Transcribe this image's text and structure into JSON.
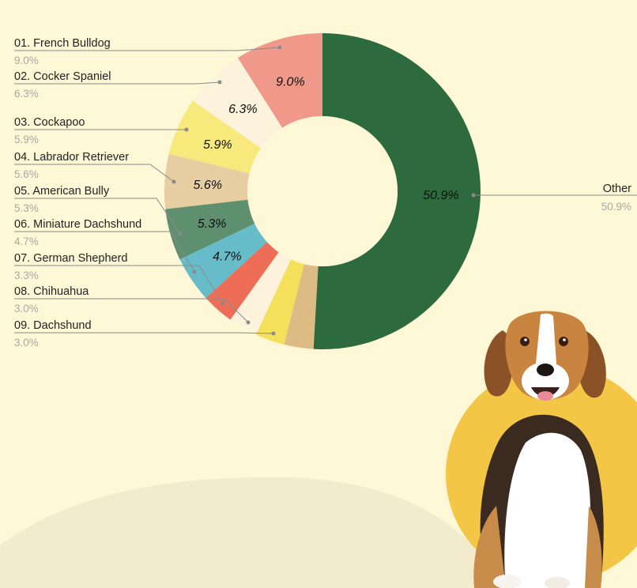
{
  "chart_data": {
    "type": "pie",
    "donut": true,
    "slices": [
      {
        "rank": "01.",
        "name": "French Bulldog",
        "value": 9.0,
        "value_label": "9.0%",
        "color": "#f0998a",
        "show_label": true
      },
      {
        "rank": "02.",
        "name": "Cocker Spaniel",
        "value": 6.3,
        "value_label": "6.3%",
        "color": "#fdf3dc",
        "show_label": true
      },
      {
        "rank": "03.",
        "name": "Cockapoo",
        "value": 5.9,
        "value_label": "5.9%",
        "color": "#f8e97c",
        "show_label": true
      },
      {
        "rank": "04.",
        "name": "Labrador Retriever",
        "value": 5.6,
        "value_label": "5.6%",
        "color": "#e6cda2",
        "show_label": true
      },
      {
        "rank": "05.",
        "name": "American Bully",
        "value": 5.3,
        "value_label": "5.3%",
        "color": "#5e8f6e",
        "show_label": true
      },
      {
        "rank": "06.",
        "name": "Miniature Dachshund",
        "value": 4.7,
        "value_label": "4.7%",
        "color": "#66bcc9",
        "show_label": true
      },
      {
        "rank": "07.",
        "name": "German Shepherd",
        "value": 3.3,
        "value_label": "3.3%",
        "color": "#ee6d56",
        "show_label": false
      },
      {
        "rank": "08.",
        "name": "Chihuahua",
        "value": 3.0,
        "value_label": "3.0%",
        "color": "#fdf3dc",
        "show_label": false
      },
      {
        "rank": "09.",
        "name": "Dachshund",
        "value": 3.0,
        "value_label": "3.0%",
        "color": "#f4e05a",
        "show_label": false
      },
      {
        "rank": "",
        "name": "",
        "value": 3.0,
        "value_label": "",
        "color": "#dcbc84",
        "show_label": false
      },
      {
        "rank": "",
        "name": "Other",
        "value": 50.9,
        "value_label": "50.9%",
        "color": "#2d6a3e",
        "show_label": true
      }
    ]
  },
  "colors": {
    "background": "#fef8d6",
    "hill": "#f3ebcd",
    "sun_circle": "#f4c646"
  },
  "illustration": "beagle-dog-photo"
}
